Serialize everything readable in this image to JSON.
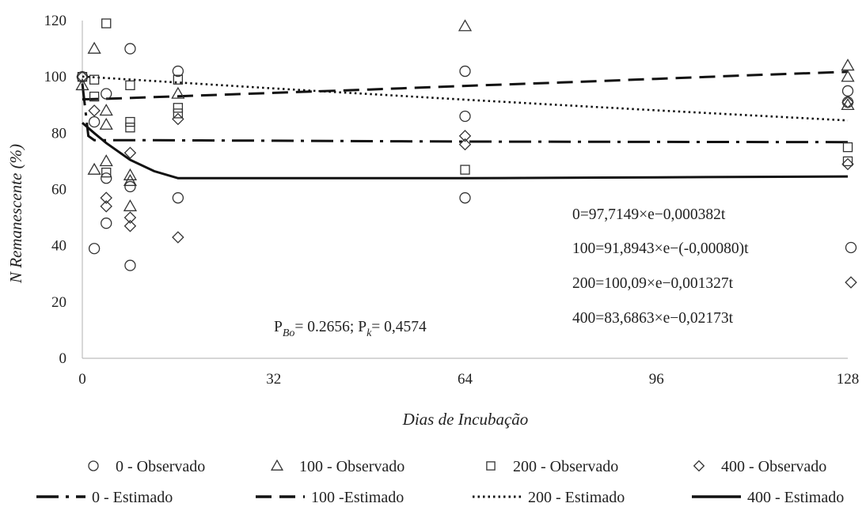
{
  "chart_data": {
    "type": "scatter",
    "xlabel": "Dias de Incubação",
    "ylabel": "N Remanescente (%)",
    "xlim": [
      0,
      128
    ],
    "ylim": [
      0,
      120
    ],
    "xticks": [
      0,
      32,
      64,
      96,
      128
    ],
    "yticks": [
      0,
      20,
      40,
      60,
      80,
      100,
      120
    ],
    "grid": false,
    "legend_position": "bottom",
    "series": [
      {
        "name": "0 - Observado",
        "marker": "circle",
        "points": [
          {
            "x": 0,
            "y": 100
          },
          {
            "x": 2,
            "y": 39
          },
          {
            "x": 2,
            "y": 84
          },
          {
            "x": 4,
            "y": 48
          },
          {
            "x": 4,
            "y": 64
          },
          {
            "x": 4,
            "y": 94
          },
          {
            "x": 8,
            "y": 33
          },
          {
            "x": 8,
            "y": 61
          },
          {
            "x": 8,
            "y": 110
          },
          {
            "x": 16,
            "y": 57
          },
          {
            "x": 16,
            "y": 102
          },
          {
            "x": 64,
            "y": 57
          },
          {
            "x": 64,
            "y": 86
          },
          {
            "x": 64,
            "y": 102
          },
          {
            "x": 128,
            "y": 91
          },
          {
            "x": 128,
            "y": 95
          }
        ]
      },
      {
        "name": "100 - Observado",
        "marker": "triangle",
        "points": [
          {
            "x": 0,
            "y": 97
          },
          {
            "x": 2,
            "y": 67
          },
          {
            "x": 2,
            "y": 110
          },
          {
            "x": 4,
            "y": 70
          },
          {
            "x": 4,
            "y": 83
          },
          {
            "x": 4,
            "y": 88
          },
          {
            "x": 8,
            "y": 54
          },
          {
            "x": 8,
            "y": 63
          },
          {
            "x": 8,
            "y": 65
          },
          {
            "x": 16,
            "y": 94
          },
          {
            "x": 64,
            "y": 118
          },
          {
            "x": 128,
            "y": 90
          },
          {
            "x": 128,
            "y": 100
          },
          {
            "x": 128,
            "y": 104
          }
        ]
      },
      {
        "name": "200 - Observado",
        "marker": "square",
        "points": [
          {
            "x": 0,
            "y": 100
          },
          {
            "x": 2,
            "y": 99
          },
          {
            "x": 2,
            "y": 93
          },
          {
            "x": 4,
            "y": 66
          },
          {
            "x": 4,
            "y": 119
          },
          {
            "x": 8,
            "y": 82
          },
          {
            "x": 8,
            "y": 84
          },
          {
            "x": 8,
            "y": 97
          },
          {
            "x": 16,
            "y": 87
          },
          {
            "x": 16,
            "y": 89
          },
          {
            "x": 16,
            "y": 99
          },
          {
            "x": 64,
            "y": 67
          },
          {
            "x": 128,
            "y": 70
          },
          {
            "x": 128,
            "y": 75
          }
        ]
      },
      {
        "name": "400 - Observado",
        "marker": "diamond",
        "points": [
          {
            "x": 0,
            "y": 100
          },
          {
            "x": 2,
            "y": 88
          },
          {
            "x": 4,
            "y": 54
          },
          {
            "x": 4,
            "y": 57
          },
          {
            "x": 8,
            "y": 47
          },
          {
            "x": 8,
            "y": 50
          },
          {
            "x": 8,
            "y": 73
          },
          {
            "x": 16,
            "y": 43
          },
          {
            "x": 16,
            "y": 85
          },
          {
            "x": 64,
            "y": 76
          },
          {
            "x": 64,
            "y": 79
          },
          {
            "x": 128,
            "y": 69
          },
          {
            "x": 128,
            "y": 91
          }
        ]
      },
      {
        "name": "0 - Estimado",
        "line": "dash-dot",
        "points": [
          {
            "x": 0,
            "y": 97.7
          },
          {
            "x": 1,
            "y": 79
          },
          {
            "x": 2,
            "y": 77.5
          },
          {
            "x": 8,
            "y": 77.5
          },
          {
            "x": 32,
            "y": 77.3
          },
          {
            "x": 64,
            "y": 77
          },
          {
            "x": 96,
            "y": 76.9
          },
          {
            "x": 128,
            "y": 76.8
          }
        ]
      },
      {
        "name": "100 -Estimado",
        "line": "dash",
        "points": [
          {
            "x": 0,
            "y": 92.0
          },
          {
            "x": 4,
            "y": 92.2
          },
          {
            "x": 16,
            "y": 93.1
          },
          {
            "x": 32,
            "y": 94.3
          },
          {
            "x": 48,
            "y": 95.5
          },
          {
            "x": 64,
            "y": 96.8
          },
          {
            "x": 80,
            "y": 98.0
          },
          {
            "x": 96,
            "y": 99.3
          },
          {
            "x": 112,
            "y": 100.6
          },
          {
            "x": 128,
            "y": 101.8
          }
        ]
      },
      {
        "name": "200 - Estimado",
        "line": "dot",
        "points": [
          {
            "x": 0,
            "y": 100.1
          },
          {
            "x": 16,
            "y": 98.0
          },
          {
            "x": 32,
            "y": 95.9
          },
          {
            "x": 48,
            "y": 93.9
          },
          {
            "x": 64,
            "y": 91.9
          },
          {
            "x": 80,
            "y": 90.0
          },
          {
            "x": 96,
            "y": 88.1
          },
          {
            "x": 112,
            "y": 86.3
          },
          {
            "x": 128,
            "y": 84.5
          }
        ]
      },
      {
        "name": "400 - Estimado",
        "line": "solid",
        "points": [
          {
            "x": 0,
            "y": 83.7
          },
          {
            "x": 2,
            "y": 80
          },
          {
            "x": 4,
            "y": 76.5
          },
          {
            "x": 8,
            "y": 70.5
          },
          {
            "x": 12,
            "y": 66.5
          },
          {
            "x": 16,
            "y": 64
          },
          {
            "x": 32,
            "y": 64
          },
          {
            "x": 64,
            "y": 64
          },
          {
            "x": 96,
            "y": 64.3
          },
          {
            "x": 128,
            "y": 64.6
          }
        ]
      }
    ],
    "annotations": {
      "p_values": {
        "pbo_main": "P",
        "pbo_sub": "Bo",
        "pbo_val": "= 0.2656; P",
        "pk_sub": "k",
        "pk_val": "= 0,4574"
      },
      "equations": [
        {
          "text": "0=97,7149×e−0,000382t",
          "marker": ""
        },
        {
          "text": "100=91,8943×e−(-0,00080)t",
          "marker": "circle"
        },
        {
          "text": "200=100,09×e−0,001327t",
          "marker": "diamond"
        },
        {
          "text": "400=83,6863×e−0,02173t",
          "marker": ""
        }
      ]
    }
  }
}
